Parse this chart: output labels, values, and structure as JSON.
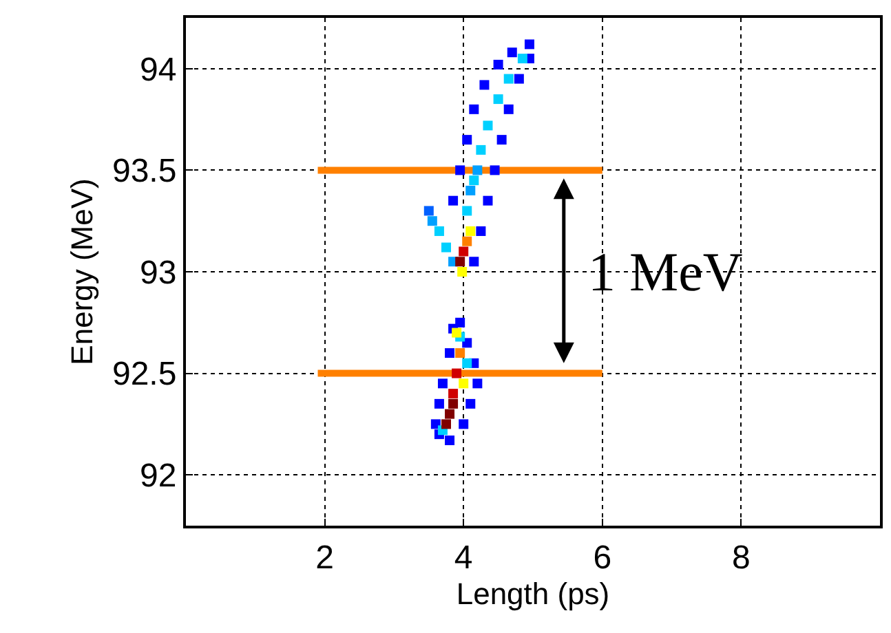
{
  "chart_data": {
    "type": "scatter",
    "xlabel": "Length (ps)",
    "ylabel": "Energy (MeV)",
    "xlim": [
      0,
      10
    ],
    "xticks": [
      2,
      4,
      6,
      8
    ],
    "ylim": [
      91.75,
      94.25
    ],
    "yticks": [
      92,
      92.5,
      93,
      93.5,
      94
    ],
    "grid": true,
    "marker": "square",
    "series": [
      {
        "x": [
          3.85,
          3.95,
          4.05,
          4.15,
          4.3,
          4.5,
          4.7,
          4.95,
          4.15,
          4.25,
          4.35,
          4.45,
          4.55,
          4.65,
          4.8,
          4.95,
          4.05,
          4.15,
          4.25,
          4.35,
          4.5,
          4.65,
          4.85,
          4.1,
          4.2,
          3.5,
          3.55,
          3.65,
          3.75,
          3.85,
          3.95,
          4.0,
          4.05,
          4.1,
          3.98,
          3.6,
          3.65,
          3.7,
          3.8,
          3.85,
          3.95,
          4.05,
          4.15,
          4.2,
          4.1,
          4.0,
          3.8,
          3.65,
          3.7,
          3.95,
          4.05,
          3.75,
          3.8,
          3.85,
          3.9,
          3.95,
          3.9,
          4.0,
          3.85
        ],
        "values": [
          93.35,
          93.5,
          93.65,
          93.8,
          93.92,
          94.02,
          94.08,
          94.12,
          93.05,
          93.2,
          93.35,
          93.5,
          93.65,
          93.8,
          93.95,
          94.05,
          93.3,
          93.45,
          93.6,
          93.72,
          93.85,
          93.95,
          94.05,
          93.4,
          93.5,
          93.3,
          93.25,
          93.2,
          93.12,
          93.05,
          93.05,
          93.1,
          93.15,
          93.2,
          93.0,
          92.25,
          92.35,
          92.45,
          92.6,
          92.72,
          92.75,
          92.65,
          92.55,
          92.45,
          92.35,
          92.25,
          92.17,
          92.2,
          92.22,
          92.68,
          92.55,
          92.25,
          92.3,
          92.4,
          92.5,
          92.6,
          92.7,
          92.45,
          92.35
        ],
        "colors": [
          "#0000ff",
          "#0000ff",
          "#0000ff",
          "#0000ff",
          "#0000ff",
          "#0000ff",
          "#0000ff",
          "#0000ff",
          "#0000ff",
          "#0000ff",
          "#0000ff",
          "#0000ff",
          "#0000ff",
          "#0000ff",
          "#0000ff",
          "#0000ff",
          "#00d0ff",
          "#00d0ff",
          "#00d0ff",
          "#00d0ff",
          "#00d0ff",
          "#00d0ff",
          "#00d0ff",
          "#00a0ff",
          "#00a0ff",
          "#0060ff",
          "#00a0ff",
          "#00d0ff",
          "#00d0ff",
          "#00a0ff",
          "#800000",
          "#d00000",
          "#ff8000",
          "#ffff00",
          "#ffff00",
          "#0000ff",
          "#0000ff",
          "#0000ff",
          "#0000ff",
          "#0000ff",
          "#0000ff",
          "#0000ff",
          "#0000ff",
          "#0000ff",
          "#0000ff",
          "#0000ff",
          "#0000ff",
          "#0000ff",
          "#00d0ff",
          "#00d0ff",
          "#00d0ff",
          "#800000",
          "#800000",
          "#d00000",
          "#d00000",
          "#ff8000",
          "#ffff00",
          "#ffff00",
          "#800000"
        ]
      },
      {
        "type": "line",
        "x": [
          1.9,
          6
        ],
        "values": [
          93.5,
          93.5
        ],
        "color": "#ff8000",
        "marker": "none"
      },
      {
        "type": "line",
        "x": [
          1.9,
          6
        ],
        "values": [
          92.5,
          92.5
        ],
        "color": "#ff8000",
        "marker": "none"
      }
    ],
    "annotations": [
      "1 MeV"
    ]
  }
}
